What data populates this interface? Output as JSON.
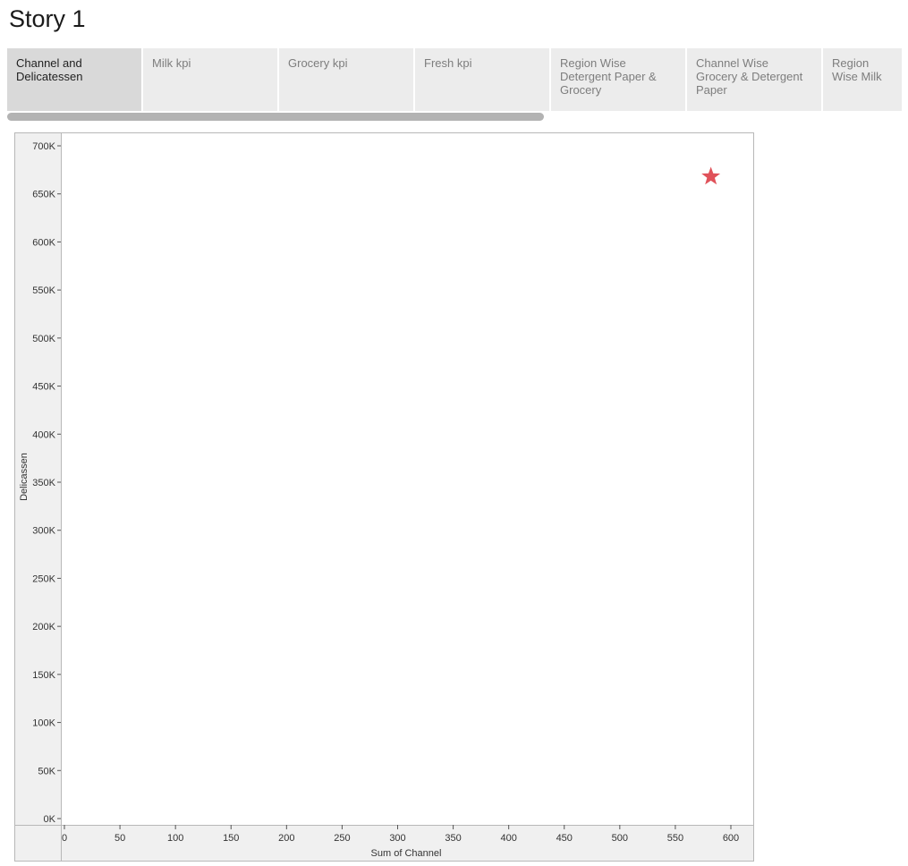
{
  "story": {
    "title": "Story 1"
  },
  "tabs": [
    {
      "label": "Channel and Delicatessen",
      "active": true
    },
    {
      "label": "Milk kpi",
      "active": false
    },
    {
      "label": "Grocery kpi",
      "active": false
    },
    {
      "label": "Fresh kpi",
      "active": false
    },
    {
      "label": "Region Wise Detergent Paper & Grocery",
      "active": false
    },
    {
      "label": "Channel Wise Grocery & Detergent Paper",
      "active": false
    },
    {
      "label": "Region Wise Milk",
      "active": false
    }
  ],
  "chart_data": {
    "type": "scatter",
    "xlabel": "Sum of Channel",
    "ylabel": "Delicassen",
    "xlim": [
      0,
      600
    ],
    "ylim": [
      0,
      700000
    ],
    "xticks": [
      0,
      50,
      100,
      150,
      200,
      250,
      300,
      350,
      400,
      450,
      500,
      550,
      600
    ],
    "yticks": [
      0,
      50000,
      100000,
      150000,
      200000,
      250000,
      300000,
      350000,
      400000,
      450000,
      500000,
      550000,
      600000,
      650000,
      700000
    ],
    "ytick_labels": [
      "0K",
      "50K",
      "100K",
      "150K",
      "200K",
      "250K",
      "300K",
      "350K",
      "400K",
      "450K",
      "500K",
      "550K",
      "600K",
      "650K",
      "700K"
    ],
    "points": [
      {
        "x": 582,
        "y": 668000,
        "marker": "star",
        "color": "#e0525a"
      }
    ]
  }
}
